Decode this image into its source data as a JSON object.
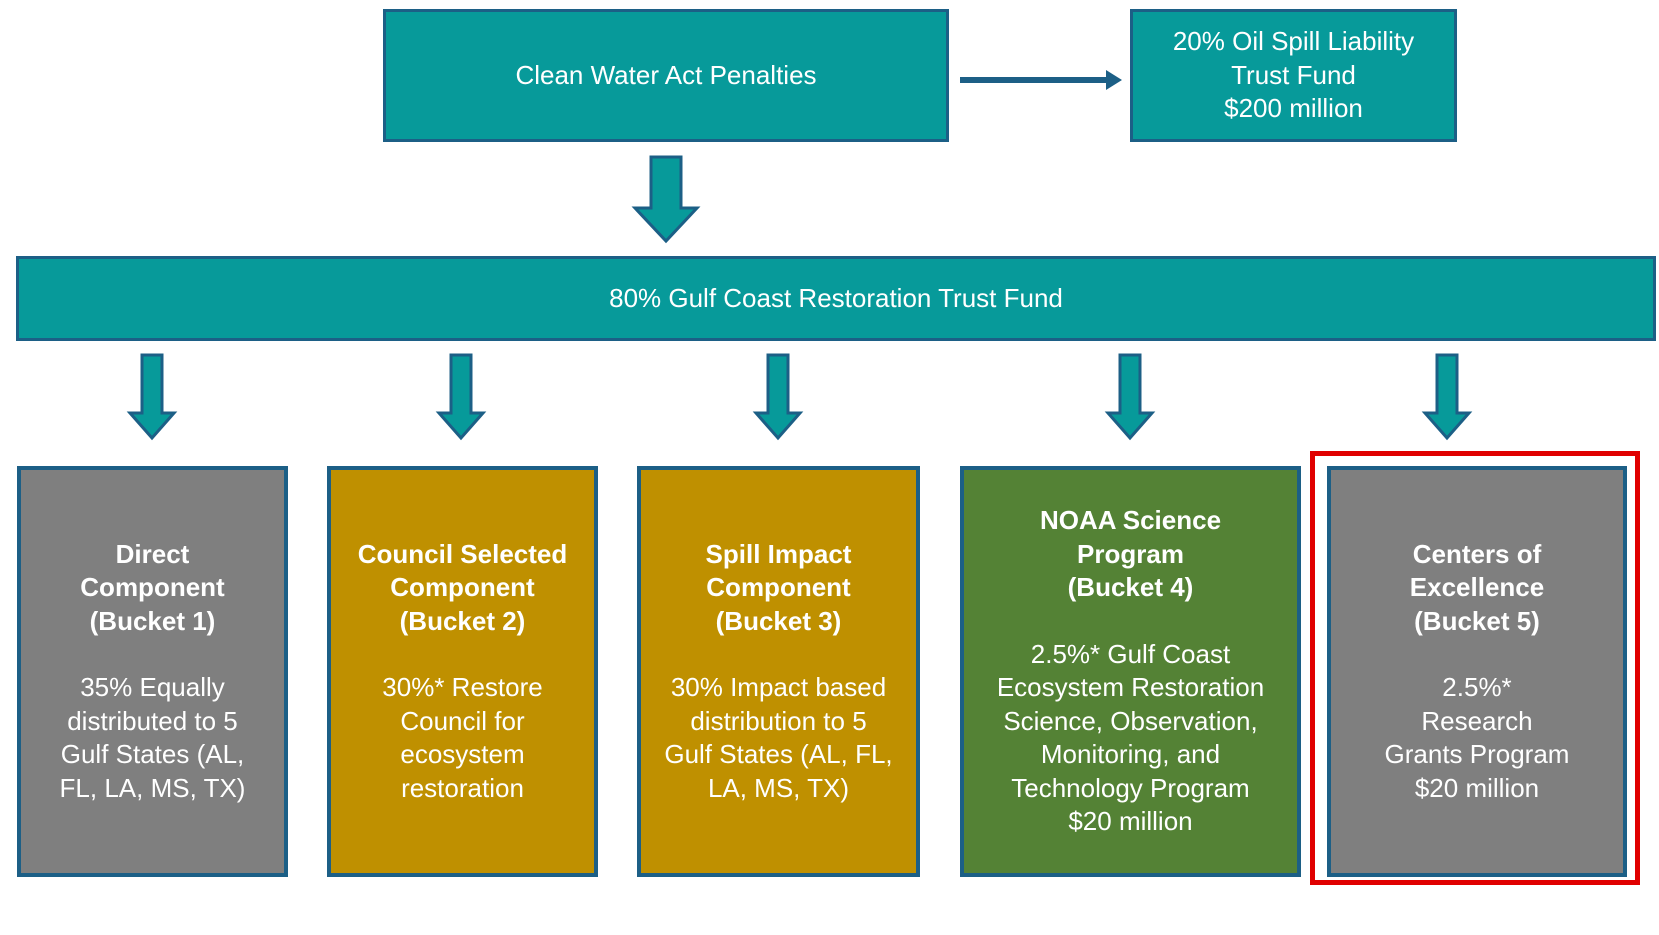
{
  "top_box": {
    "lines": [
      "Clean Water Act Penalties"
    ]
  },
  "side_box": {
    "lines": [
      "20% Oil Spill Liability",
      "Trust Fund",
      "$200 million"
    ]
  },
  "trust_fund": {
    "lines": [
      "80% Gulf Coast Restoration Trust Fund"
    ]
  },
  "buckets": [
    {
      "title": [
        "Direct",
        "Component",
        "(Bucket 1)"
      ],
      "body": [
        "35% Equally",
        "distributed to 5",
        "Gulf States (AL,",
        "FL, LA, MS, TX)"
      ]
    },
    {
      "title": [
        "Council Selected",
        "Component",
        "(Bucket 2)"
      ],
      "body": [
        "30%* Restore",
        "Council for",
        "ecosystem",
        "restoration"
      ]
    },
    {
      "title": [
        "Spill Impact",
        "Component",
        "(Bucket 3)"
      ],
      "body": [
        "30% Impact based",
        "distribution to 5",
        "Gulf States (AL, FL,",
        "LA, MS, TX)"
      ]
    },
    {
      "title": [
        "NOAA Science",
        "Program",
        "(Bucket 4)"
      ],
      "body": [
        "2.5%* Gulf Coast",
        "Ecosystem Restoration",
        "Science, Observation,",
        "Monitoring, and",
        "Technology Program",
        "$20 million"
      ]
    },
    {
      "title": [
        "Centers of",
        "Excellence",
        "(Bucket 5)"
      ],
      "body": [
        "2.5%*",
        "Research",
        "Grants Program",
        "$20 million"
      ]
    }
  ]
}
